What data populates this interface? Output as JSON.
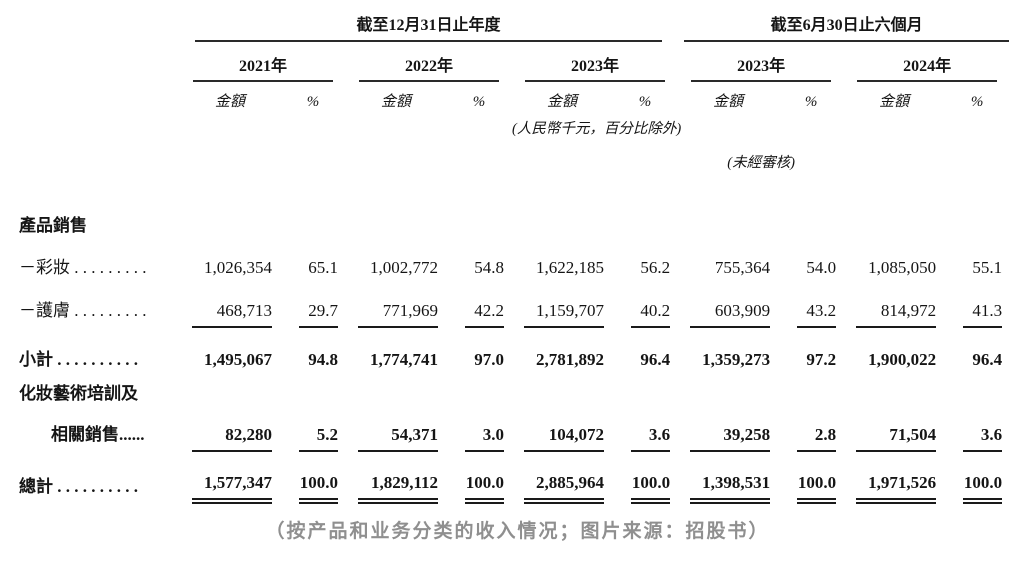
{
  "table": {
    "col_groups": [
      {
        "label": "截至12月31日止年度",
        "years": [
          "2021年",
          "2022年",
          "2023年"
        ]
      },
      {
        "label": "截至6月30日止六個月",
        "years": [
          "2023年",
          "2024年"
        ]
      }
    ],
    "sub_headers": {
      "amount": "金額",
      "percent": "%"
    },
    "notes": {
      "units": "(人民幣千元，百分比除外)",
      "unaudited": "(未經審核)"
    },
    "rows": [
      {
        "label": "產品銷售",
        "values": []
      },
      {
        "label": "－彩妝 . . . . . . . . .",
        "values": [
          "1,026,354",
          "65.1",
          "1,002,772",
          "54.8",
          "1,622,185",
          "56.2",
          "755,364",
          "54.0",
          "1,085,050",
          "55.1"
        ]
      },
      {
        "label": "－護膚 . . . . . . . . .",
        "values": [
          "468,713",
          "29.7",
          "771,969",
          "42.2",
          "1,159,707",
          "40.2",
          "603,909",
          "43.2",
          "814,972",
          "41.3"
        ]
      },
      {
        "label": "小計 . . . . . . . . . .",
        "values": [
          "1,495,067",
          "94.8",
          "1,774,741",
          "97.0",
          "2,781,892",
          "96.4",
          "1,359,273",
          "97.2",
          "1,900,022",
          "96.4"
        ]
      },
      {
        "label": "化妝藝術培訓及",
        "values": []
      },
      {
        "label": "相關銷售......",
        "values": [
          "82,280",
          "5.2",
          "54,371",
          "3.0",
          "104,072",
          "3.6",
          "39,258",
          "2.8",
          "71,504",
          "3.6"
        ]
      },
      {
        "label": "總計 . . . . . . . . . .",
        "values": [
          "1,577,347",
          "100.0",
          "1,829,112",
          "100.0",
          "2,885,964",
          "100.0",
          "1,398,531",
          "100.0",
          "1,971,526",
          "100.0"
        ]
      }
    ]
  },
  "caption": "（按产品和业务分类的收入情况；图片来源：招股书）"
}
